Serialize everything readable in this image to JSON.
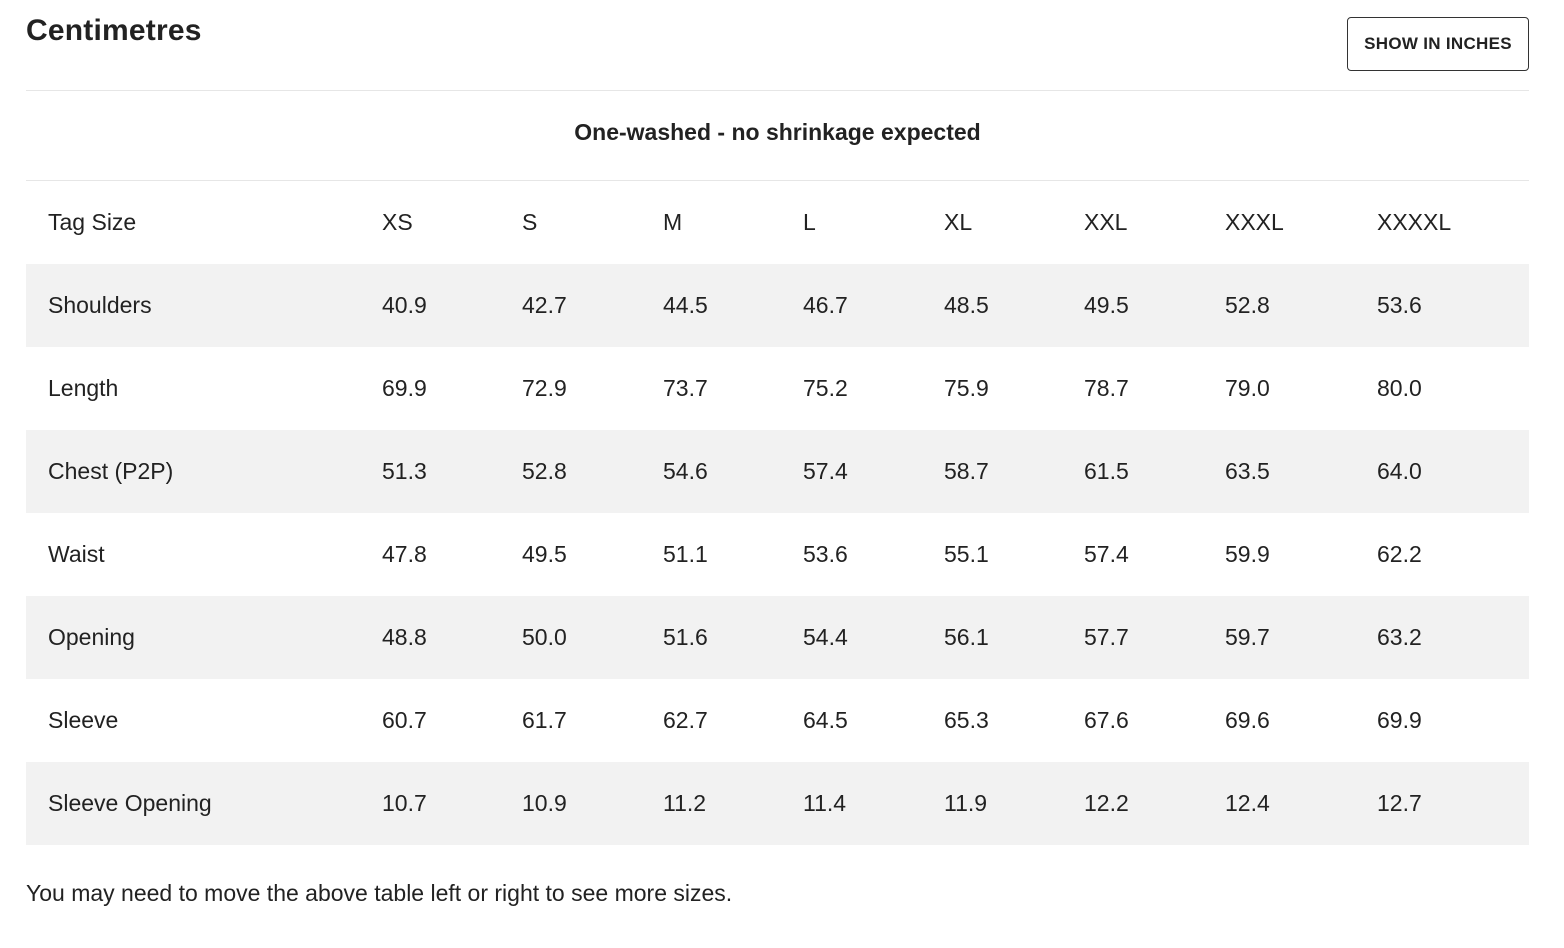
{
  "header": {
    "title": "Centimetres",
    "toggle_label": "SHOW IN INCHES"
  },
  "note": "One-washed - no shrinkage expected",
  "table": {
    "columns": [
      "Tag Size",
      "XS",
      "S",
      "M",
      "L",
      "XL",
      "XXL",
      "XXXL",
      "XXXXL"
    ],
    "rows": [
      {
        "label": "Shoulders",
        "values": [
          "40.9",
          "42.7",
          "44.5",
          "46.7",
          "48.5",
          "49.5",
          "52.8",
          "53.6"
        ]
      },
      {
        "label": "Length",
        "values": [
          "69.9",
          "72.9",
          "73.7",
          "75.2",
          "75.9",
          "78.7",
          "79.0",
          "80.0"
        ]
      },
      {
        "label": "Chest (P2P)",
        "values": [
          "51.3",
          "52.8",
          "54.6",
          "57.4",
          "58.7",
          "61.5",
          "63.5",
          "64.0"
        ]
      },
      {
        "label": "Waist",
        "values": [
          "47.8",
          "49.5",
          "51.1",
          "53.6",
          "55.1",
          "57.4",
          "59.9",
          "62.2"
        ]
      },
      {
        "label": "Opening",
        "values": [
          "48.8",
          "50.0",
          "51.6",
          "54.4",
          "56.1",
          "57.7",
          "59.7",
          "63.2"
        ]
      },
      {
        "label": "Sleeve",
        "values": [
          "60.7",
          "61.7",
          "62.7",
          "64.5",
          "65.3",
          "67.6",
          "69.6",
          "69.9"
        ]
      },
      {
        "label": "Sleeve Opening",
        "values": [
          "10.7",
          "10.9",
          "11.2",
          "11.4",
          "11.9",
          "12.2",
          "12.4",
          "12.7"
        ]
      }
    ]
  },
  "footnote": "You may need to move the above table left or right to see more sizes.",
  "colors": {
    "text": "#222222",
    "row_shade": "#f2f2f2",
    "divider": "#e6e6e6",
    "button_border": "#333333"
  }
}
